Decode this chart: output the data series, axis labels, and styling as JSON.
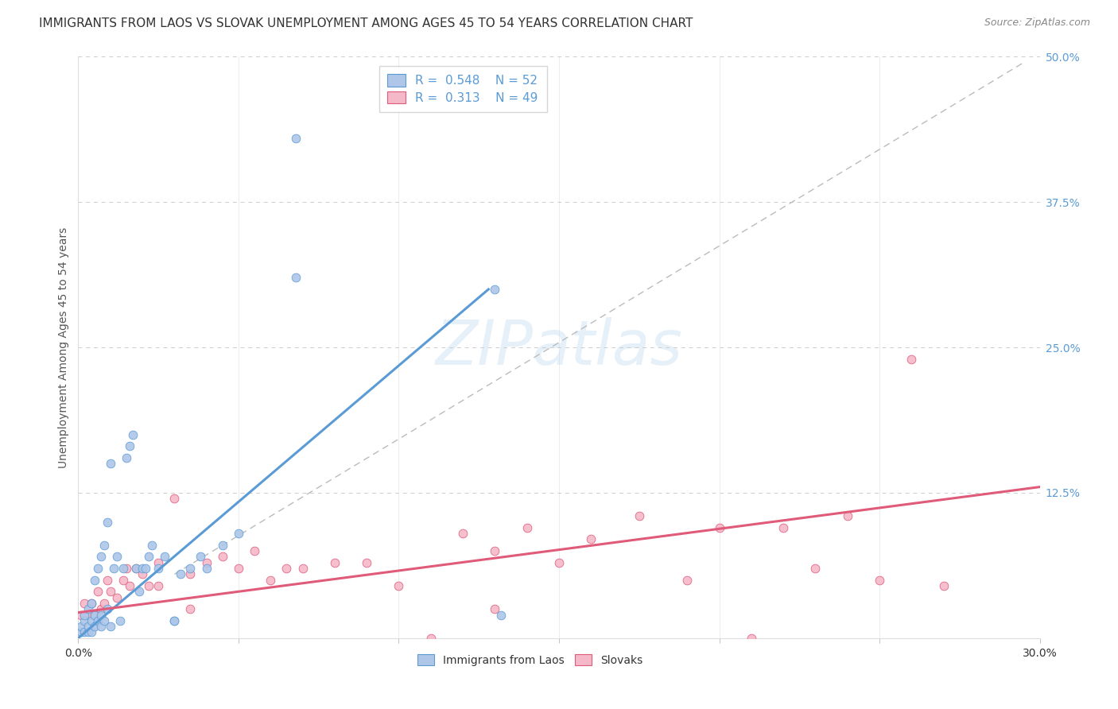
{
  "title": "IMMIGRANTS FROM LAOS VS SLOVAK UNEMPLOYMENT AMONG AGES 45 TO 54 YEARS CORRELATION CHART",
  "source": "Source: ZipAtlas.com",
  "ylabel": "Unemployment Among Ages 45 to 54 years",
  "xlim": [
    0.0,
    0.3
  ],
  "ylim": [
    0.0,
    0.5
  ],
  "xticks": [
    0.0,
    0.05,
    0.1,
    0.15,
    0.2,
    0.25,
    0.3
  ],
  "yticks_right": [
    0.0,
    0.125,
    0.25,
    0.375,
    0.5
  ],
  "blue_color": "#aec6e8",
  "blue_edge": "#5b9bd5",
  "pink_color": "#f4b8c8",
  "pink_edge": "#e05a7a",
  "legend_blue_R": "0.548",
  "legend_blue_N": "52",
  "legend_pink_R": "0.313",
  "legend_pink_N": "49",
  "blue_scatter_x": [
    0.001,
    0.001,
    0.002,
    0.002,
    0.002,
    0.003,
    0.003,
    0.003,
    0.004,
    0.004,
    0.004,
    0.005,
    0.005,
    0.005,
    0.006,
    0.006,
    0.007,
    0.007,
    0.007,
    0.008,
    0.008,
    0.009,
    0.009,
    0.01,
    0.01,
    0.011,
    0.012,
    0.013,
    0.014,
    0.015,
    0.016,
    0.017,
    0.018,
    0.019,
    0.02,
    0.021,
    0.022,
    0.023,
    0.025,
    0.027,
    0.03,
    0.032,
    0.035,
    0.038,
    0.04,
    0.045,
    0.05,
    0.13,
    0.132,
    0.03,
    0.068,
    0.068
  ],
  "blue_scatter_y": [
    0.005,
    0.01,
    0.005,
    0.015,
    0.02,
    0.005,
    0.01,
    0.025,
    0.005,
    0.015,
    0.03,
    0.01,
    0.02,
    0.05,
    0.015,
    0.06,
    0.01,
    0.02,
    0.07,
    0.015,
    0.08,
    0.025,
    0.1,
    0.01,
    0.15,
    0.06,
    0.07,
    0.015,
    0.06,
    0.155,
    0.165,
    0.175,
    0.06,
    0.04,
    0.06,
    0.06,
    0.07,
    0.08,
    0.06,
    0.07,
    0.015,
    0.055,
    0.06,
    0.07,
    0.06,
    0.08,
    0.09,
    0.3,
    0.02,
    0.015,
    0.43,
    0.31
  ],
  "pink_scatter_x": [
    0.001,
    0.002,
    0.003,
    0.004,
    0.005,
    0.006,
    0.007,
    0.008,
    0.009,
    0.01,
    0.012,
    0.014,
    0.016,
    0.018,
    0.02,
    0.022,
    0.025,
    0.03,
    0.035,
    0.04,
    0.045,
    0.05,
    0.055,
    0.06,
    0.065,
    0.07,
    0.08,
    0.09,
    0.1,
    0.11,
    0.12,
    0.13,
    0.14,
    0.15,
    0.16,
    0.175,
    0.19,
    0.2,
    0.21,
    0.22,
    0.23,
    0.24,
    0.25,
    0.26,
    0.27,
    0.015,
    0.025,
    0.035,
    0.13
  ],
  "pink_scatter_y": [
    0.02,
    0.03,
    0.02,
    0.03,
    0.02,
    0.04,
    0.025,
    0.03,
    0.05,
    0.04,
    0.035,
    0.05,
    0.045,
    0.06,
    0.055,
    0.045,
    0.065,
    0.12,
    0.055,
    0.065,
    0.07,
    0.06,
    0.075,
    0.05,
    0.06,
    0.06,
    0.065,
    0.065,
    0.045,
    0.0,
    0.09,
    0.075,
    0.095,
    0.065,
    0.085,
    0.105,
    0.05,
    0.095,
    0.0,
    0.095,
    0.06,
    0.105,
    0.05,
    0.24,
    0.045,
    0.06,
    0.045,
    0.025,
    0.025
  ],
  "blue_line_x0": 0.0,
  "blue_line_y0": 0.0,
  "blue_line_x1": 0.128,
  "blue_line_y1": 0.3,
  "pink_line_x0": 0.0,
  "pink_line_y0": 0.022,
  "pink_line_x1": 0.3,
  "pink_line_y1": 0.13,
  "ref_line_x0": 0.03,
  "ref_line_y0": 0.055,
  "ref_line_x1": 0.295,
  "ref_line_y1": 0.495,
  "watermark_text": "ZIPatlas",
  "bg_color": "#ffffff",
  "grid_color": "#cccccc",
  "title_fontsize": 11,
  "axis_label_fontsize": 10,
  "tick_fontsize": 10,
  "legend_fontsize": 11
}
